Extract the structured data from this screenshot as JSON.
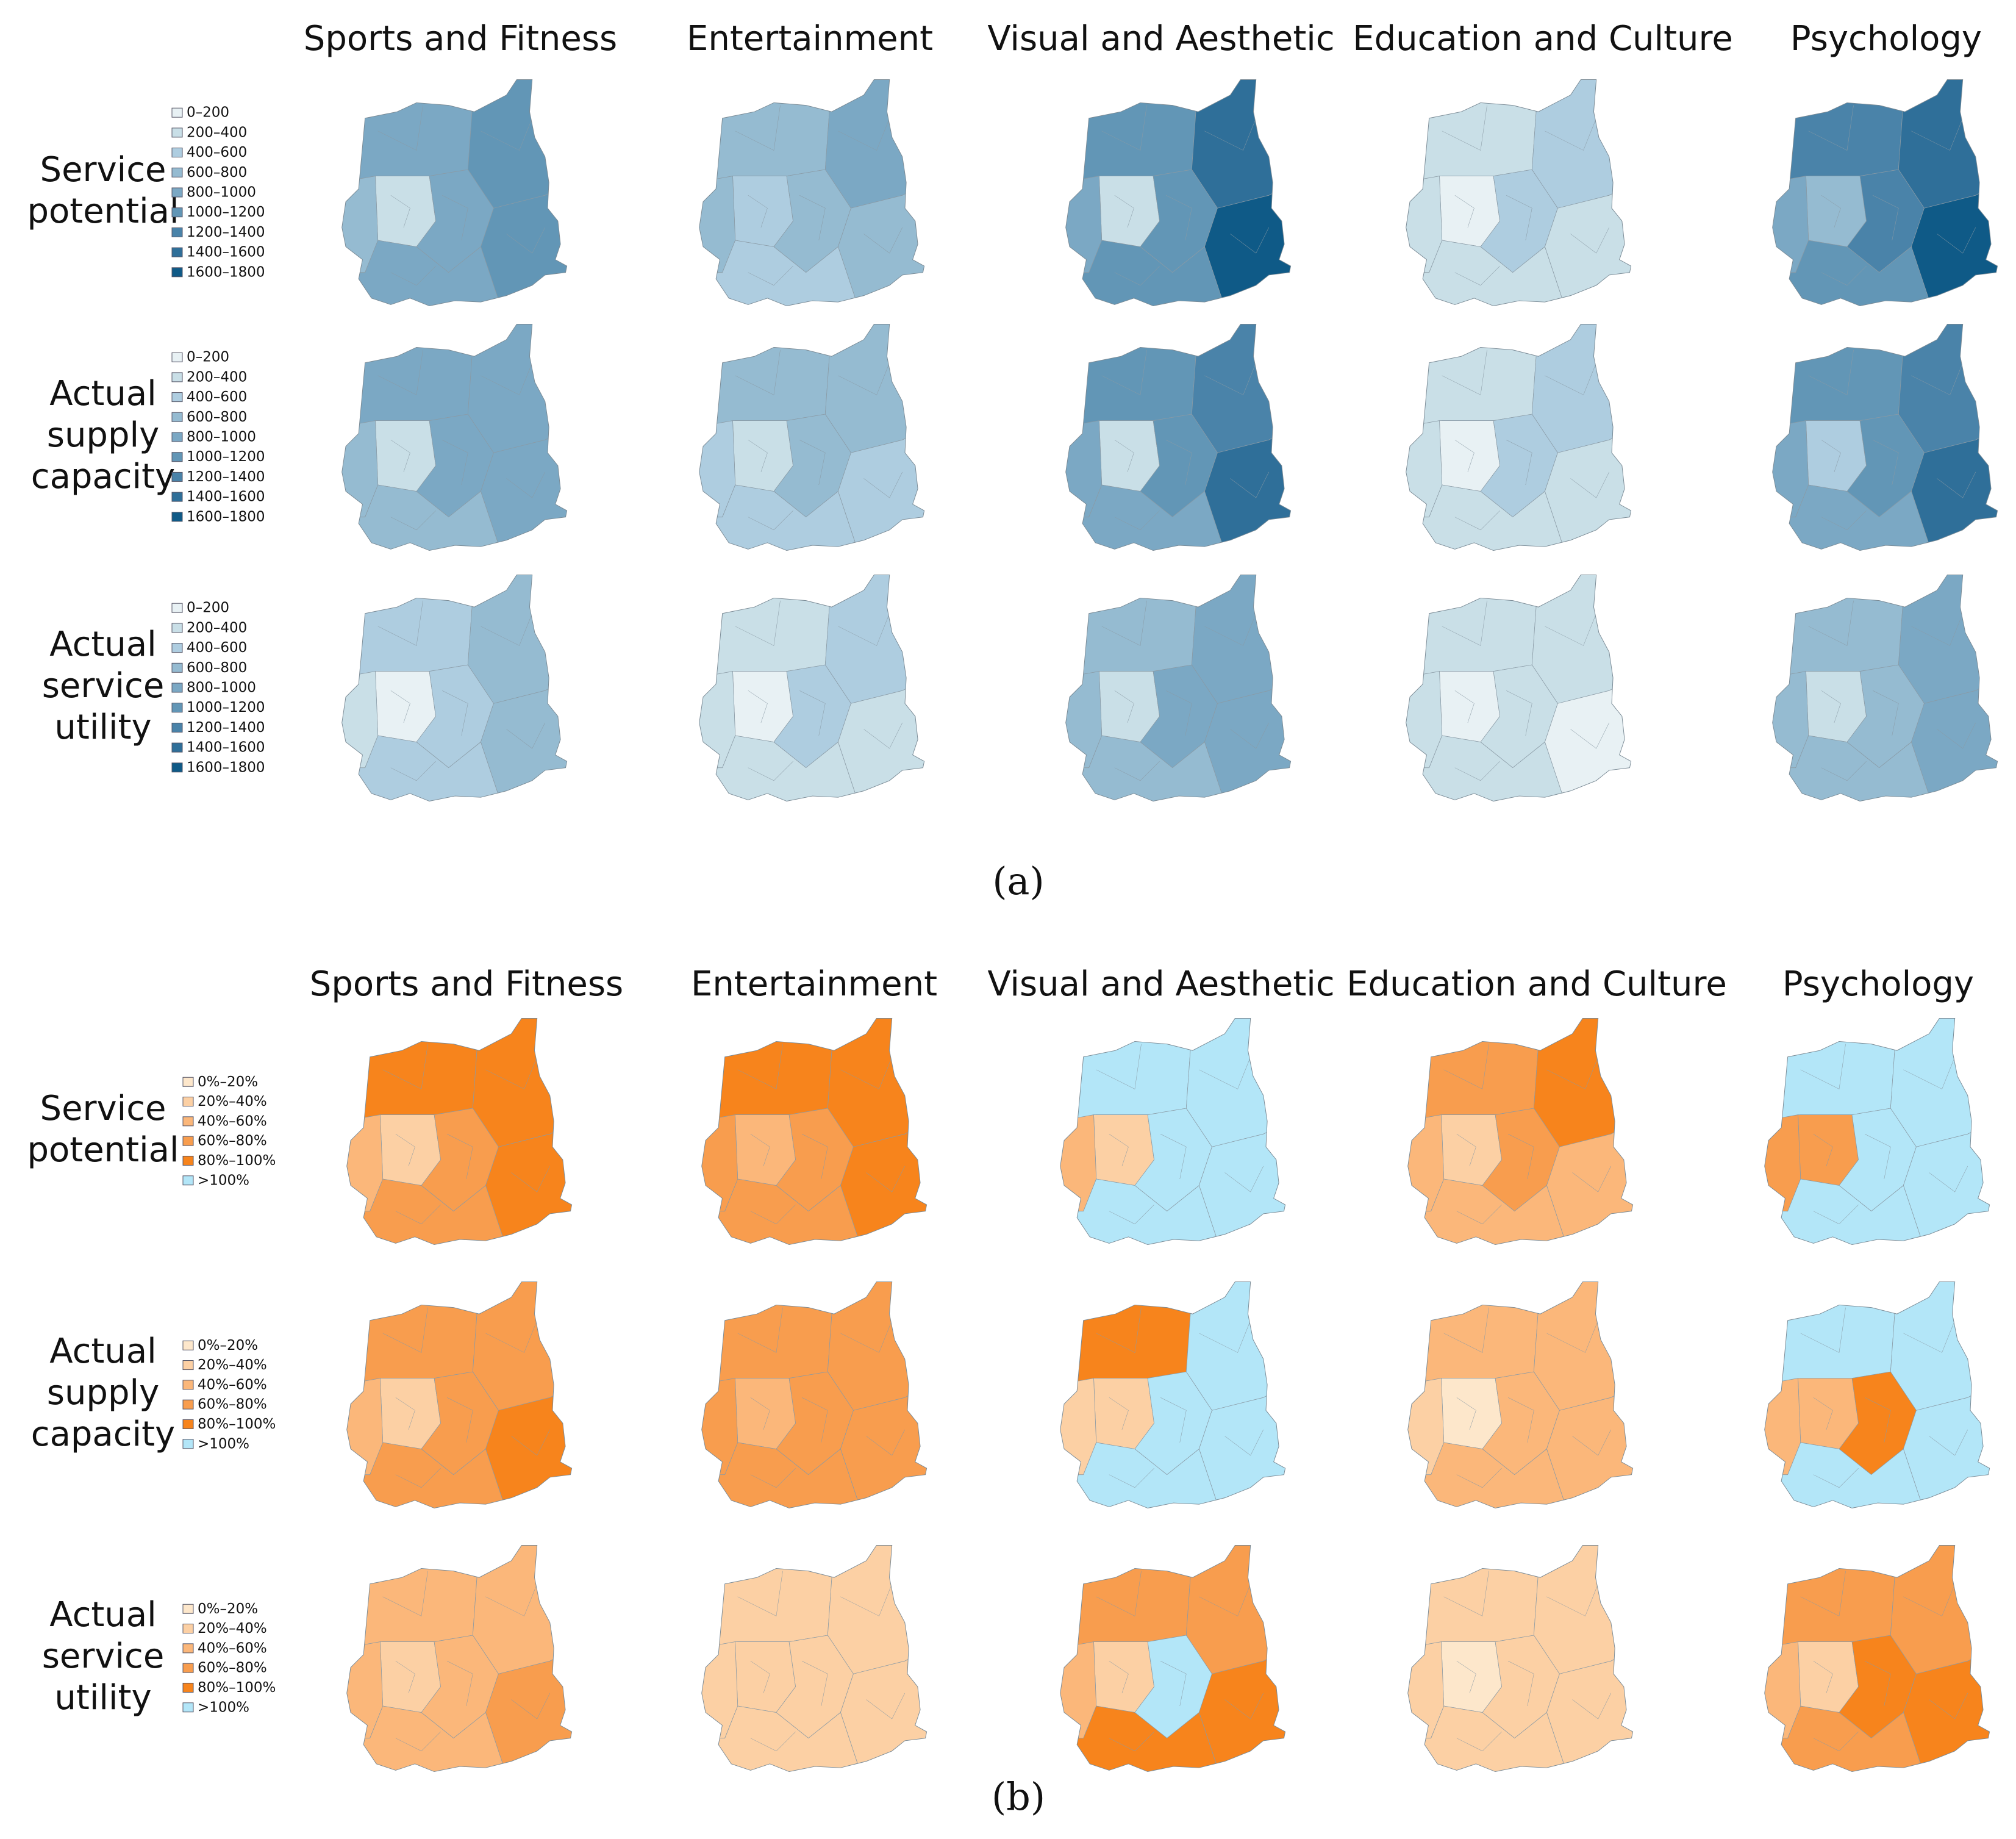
{
  "part_a": {
    "columns": [
      "Sports and Fitness",
      "Entertainment",
      "Visual and Aesthetic",
      "Education and Culture",
      "Psychology"
    ],
    "rows": [
      {
        "label": [
          "Service",
          "potential"
        ],
        "legend": [
          "0–200",
          "200–400",
          "400–600",
          "600–800",
          "800–1000",
          "1000–1200",
          "1200–1400",
          "1400–1600",
          "1600–1800"
        ]
      },
      {
        "label": [
          "Actual",
          "supply",
          "capacity"
        ],
        "legend": [
          "0–200",
          "200–400",
          "400–600",
          "600–800",
          "800–1000",
          "1000–1200",
          "1200–1400",
          "1400–1600",
          "1600–1800"
        ]
      },
      {
        "label": [
          "Actual",
          "service",
          "utility"
        ],
        "legend": [
          "0–200",
          "200–400",
          "400–600",
          "600–800",
          "800–1000",
          "1000–1200",
          "1200–1400",
          "1400–1600",
          "1600–1800"
        ]
      }
    ],
    "colors": [
      "#e8f1f4",
      "#c9dfe7",
      "#aecde0",
      "#95bbd1",
      "#7ba8c4",
      "#6296b6",
      "#4a83a9",
      "#2f6f99",
      "#0f5a87"
    ],
    "caption": "(a)"
  },
  "part_b": {
    "columns": [
      "Sports and Fitness",
      "Entertainment",
      "Visual and Aesthetic",
      "Education and Culture",
      "Psychology"
    ],
    "rows": [
      {
        "label": [
          "Service",
          "potential"
        ],
        "legend": [
          "0%–20%",
          "20%–40%",
          "40%–60%",
          "60%–80%",
          "80%–100%",
          ">100%"
        ]
      },
      {
        "label": [
          "Actual",
          "supply",
          "capacity"
        ],
        "legend": [
          "0%–20%",
          "20%–40%",
          "40%–60%",
          "60%–80%",
          "80%–100%",
          ">100%"
        ]
      },
      {
        "label": [
          "Actual",
          "service",
          "utility"
        ],
        "legend": [
          "0%–20%",
          "20%–40%",
          "40%–60%",
          "60%–80%",
          "80%–100%",
          ">100%"
        ]
      }
    ],
    "colors": [
      "#fde7cb",
      "#fcd0a4",
      "#fbb77a",
      "#f89d4e",
      "#f7841c",
      "#b3e6f8"
    ],
    "caption": "(b)"
  }
}
